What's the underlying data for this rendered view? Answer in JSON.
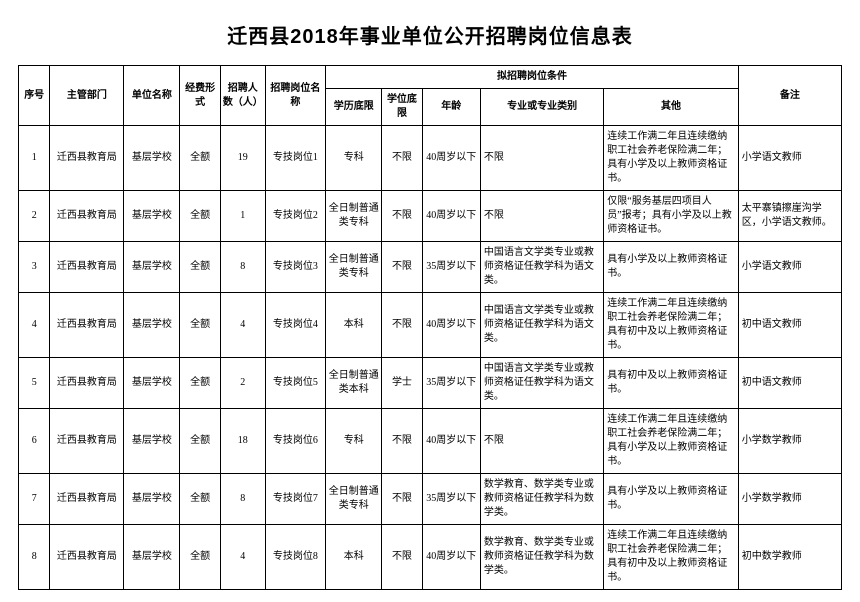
{
  "title": "迁西县2018年事业单位公开招聘岗位信息表",
  "header": {
    "seq": "序号",
    "dept": "主管部门",
    "unit": "单位名称",
    "fund": "经费形式",
    "num": "招聘人数（人）",
    "pos": "招聘岗位名称",
    "cond_group": "拟招聘岗位条件",
    "edu": "学历底限",
    "deg": "学位底限",
    "age": "年龄",
    "major": "专业或专业类别",
    "other": "其他",
    "note": "备注"
  },
  "rows": [
    {
      "seq": "1",
      "dept": "迁西县教育局",
      "unit": "基层学校",
      "fund": "全额",
      "num": "19",
      "pos": "专技岗位1",
      "edu": "专科",
      "deg": "不限",
      "age": "40周岁以下",
      "major": "不限",
      "other": "连续工作满二年且连续缴纳职工社会养老保险满二年；具有小学及以上教师资格证书。",
      "note": "小学语文教师"
    },
    {
      "seq": "2",
      "dept": "迁西县教育局",
      "unit": "基层学校",
      "fund": "全额",
      "num": "1",
      "pos": "专技岗位2",
      "edu": "全日制普通类专科",
      "deg": "不限",
      "age": "40周岁以下",
      "major": "不限",
      "other": "仅限“服务基层四项目人员”报考；具有小学及以上教师资格证书。",
      "note": "太平寨镇擦崖沟学区，小学语文教师。"
    },
    {
      "seq": "3",
      "dept": "迁西县教育局",
      "unit": "基层学校",
      "fund": "全额",
      "num": "8",
      "pos": "专技岗位3",
      "edu": "全日制普通类专科",
      "deg": "不限",
      "age": "35周岁以下",
      "major": "中国语言文学类专业或教师资格证任教学科为语文类。",
      "other": "具有小学及以上教师资格证书。",
      "note": "小学语文教师"
    },
    {
      "seq": "4",
      "dept": "迁西县教育局",
      "unit": "基层学校",
      "fund": "全额",
      "num": "4",
      "pos": "专技岗位4",
      "edu": "本科",
      "deg": "不限",
      "age": "40周岁以下",
      "major": "中国语言文学类专业或教师资格证任教学科为语文类。",
      "other": "连续工作满二年且连续缴纳职工社会养老保险满二年；具有初中及以上教师资格证书。",
      "note": "初中语文教师"
    },
    {
      "seq": "5",
      "dept": "迁西县教育局",
      "unit": "基层学校",
      "fund": "全额",
      "num": "2",
      "pos": "专技岗位5",
      "edu": "全日制普通类本科",
      "deg": "学士",
      "age": "35周岁以下",
      "major": "中国语言文学类专业或教师资格证任教学科为语文类。",
      "other": "具有初中及以上教师资格证书。",
      "note": "初中语文教师"
    },
    {
      "seq": "6",
      "dept": "迁西县教育局",
      "unit": "基层学校",
      "fund": "全额",
      "num": "18",
      "pos": "专技岗位6",
      "edu": "专科",
      "deg": "不限",
      "age": "40周岁以下",
      "major": "不限",
      "other": "连续工作满二年且连续缴纳职工社会养老保险满二年；具有小学及以上教师资格证书。",
      "note": "小学数学教师"
    },
    {
      "seq": "7",
      "dept": "迁西县教育局",
      "unit": "基层学校",
      "fund": "全额",
      "num": "8",
      "pos": "专技岗位7",
      "edu": "全日制普通类专科",
      "deg": "不限",
      "age": "35周岁以下",
      "major": "数学教育、数学类专业或教师资格证任教学科为数学类。",
      "other": "具有小学及以上教师资格证书。",
      "note": "小学数学教师"
    },
    {
      "seq": "8",
      "dept": "迁西县教育局",
      "unit": "基层学校",
      "fund": "全额",
      "num": "4",
      "pos": "专技岗位8",
      "edu": "本科",
      "deg": "不限",
      "age": "40周岁以下",
      "major": "数学教育、数学类专业或教师资格证任教学科为数学类。",
      "other": "连续工作满二年且连续缴纳职工社会养老保险满二年；具有初中及以上教师资格证书。",
      "note": "初中数学教师"
    }
  ]
}
